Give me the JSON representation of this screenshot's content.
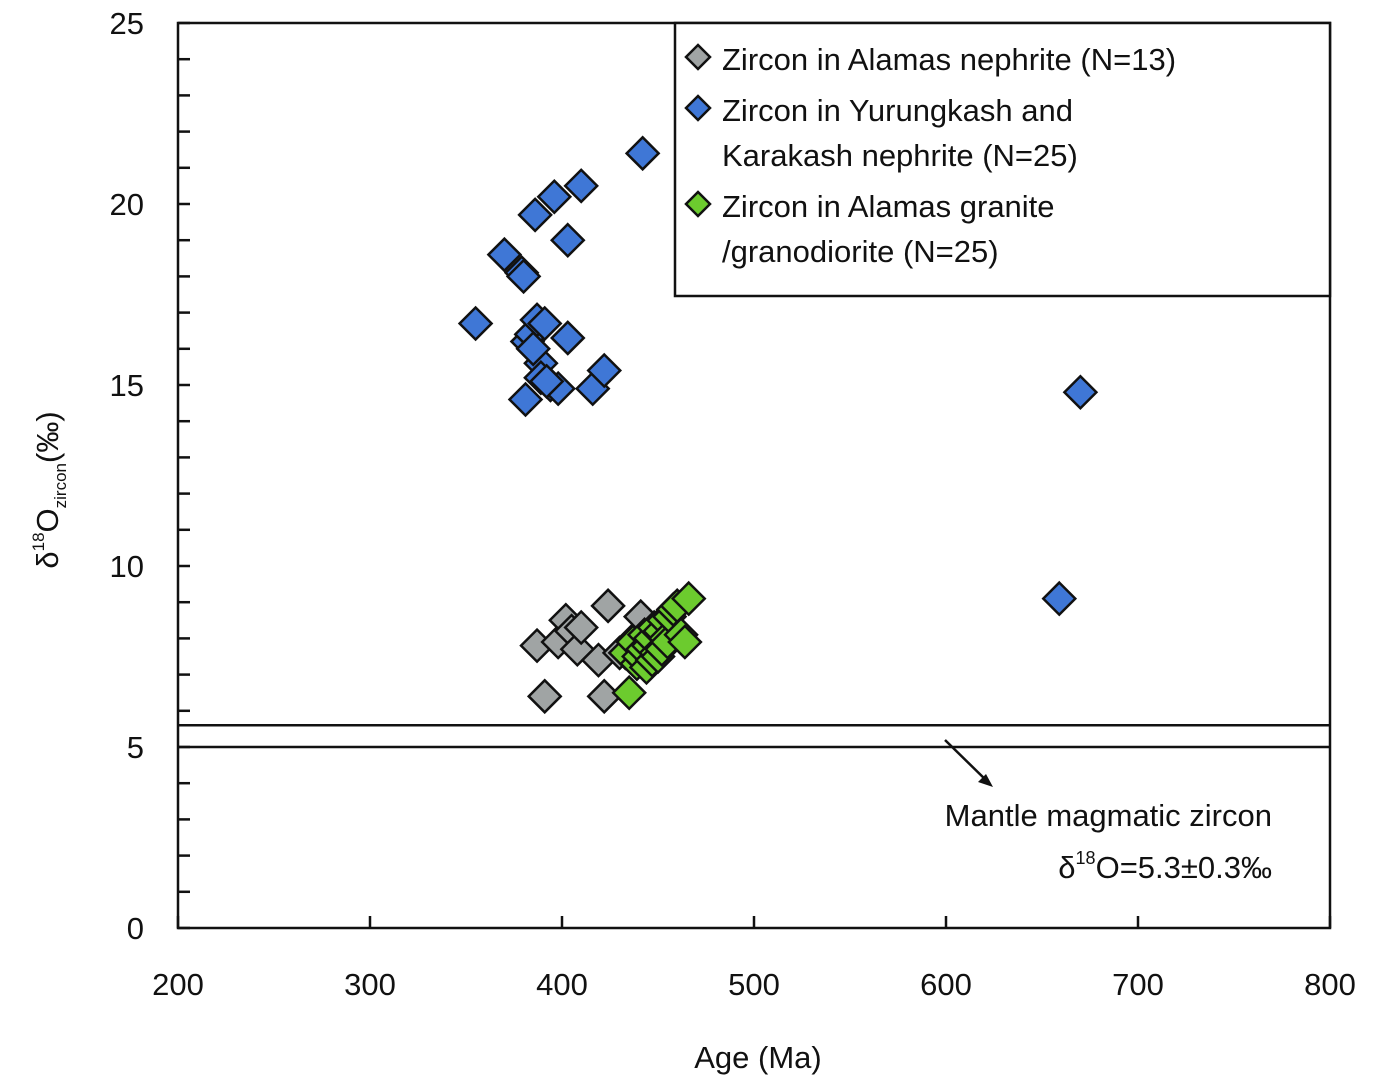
{
  "chart_data": {
    "type": "scatter",
    "xlabel": "Age (Ma)",
    "ylabel": {
      "prefix": "δ",
      "sup": "18",
      "main": "O",
      "sub": "zircon",
      "suffix": "(‰)"
    },
    "xlim": [
      200,
      800
    ],
    "ylim": [
      0,
      25
    ],
    "x_ticks": [
      200,
      300,
      400,
      500,
      600,
      700,
      800
    ],
    "y_ticks": [
      0,
      5,
      10,
      15,
      20,
      25
    ],
    "y_minor_step": 1,
    "grid": false,
    "legend_position": "top-right",
    "series": [
      {
        "name": "Zircon in Alamas nephrite (N=13)",
        "legend_lines": [
          "Zircon in Alamas nephrite (N=13)"
        ],
        "color": "#a0a4a4",
        "marker": "diamond",
        "points": [
          [
            387,
            7.8
          ],
          [
            391,
            6.4
          ],
          [
            398,
            7.9
          ],
          [
            402,
            8.5
          ],
          [
            405,
            8.2
          ],
          [
            408,
            7.7
          ],
          [
            410,
            8.3
          ],
          [
            419,
            7.4
          ],
          [
            422,
            6.4
          ],
          [
            424,
            8.9
          ],
          [
            436,
            7.9
          ],
          [
            441,
            8.6
          ],
          [
            430,
            7.6
          ]
        ]
      },
      {
        "name": "Zircon in Yurungkash and Karakash nephrite (N=25)",
        "legend_lines": [
          "Zircon in Yurungkash and",
          "Karakash nephrite (N=25)"
        ],
        "color": "#3f77d6",
        "marker": "diamond",
        "points": [
          [
            355,
            16.7
          ],
          [
            370,
            18.6
          ],
          [
            379,
            18.1
          ],
          [
            381,
            14.6
          ],
          [
            382,
            16.2
          ],
          [
            384,
            16.4
          ],
          [
            386,
            19.7
          ],
          [
            387,
            16.8
          ],
          [
            389,
            15.6
          ],
          [
            389,
            15.2
          ],
          [
            391,
            16.7
          ],
          [
            394,
            15.0
          ],
          [
            396,
            20.2
          ],
          [
            398,
            14.9
          ],
          [
            403,
            16.3
          ],
          [
            403,
            19.0
          ],
          [
            410,
            20.5
          ],
          [
            416,
            14.9
          ],
          [
            422,
            15.4
          ],
          [
            442,
            21.4
          ],
          [
            380,
            18.0
          ],
          [
            385,
            16.0
          ],
          [
            392,
            15.1
          ],
          [
            659,
            9.1
          ],
          [
            670,
            14.8
          ]
        ]
      },
      {
        "name": "Zircon in Alamas granite /granodiorite (N=25)",
        "legend_lines": [
          "Zircon in Alamas granite",
          "/granodiorite (N=25)"
        ],
        "color": "#6ccb2e",
        "marker": "diamond",
        "points": [
          [
            433,
            7.6
          ],
          [
            435,
            6.5
          ],
          [
            437,
            7.9
          ],
          [
            439,
            7.3
          ],
          [
            440,
            7.5
          ],
          [
            442,
            7.7
          ],
          [
            443,
            8.1
          ],
          [
            444,
            7.2
          ],
          [
            445,
            7.8
          ],
          [
            446,
            8.0
          ],
          [
            447,
            7.4
          ],
          [
            448,
            8.3
          ],
          [
            449,
            7.6
          ],
          [
            450,
            7.5
          ],
          [
            451,
            8.2
          ],
          [
            452,
            7.7
          ],
          [
            453,
            8.5
          ],
          [
            454,
            8.0
          ],
          [
            455,
            7.9
          ],
          [
            456,
            8.6
          ],
          [
            458,
            8.8
          ],
          [
            460,
            8.9
          ],
          [
            462,
            8.1
          ],
          [
            464,
            7.9
          ],
          [
            466,
            9.1
          ]
        ]
      }
    ],
    "mantle_band": {
      "y_low": 5.0,
      "y_high": 5.6,
      "label_line1": "Mantle magmatic zircon",
      "label_line2": {
        "prefix": "δ",
        "sup": "18",
        "rest": "O=5.3±0.3‰"
      }
    }
  }
}
